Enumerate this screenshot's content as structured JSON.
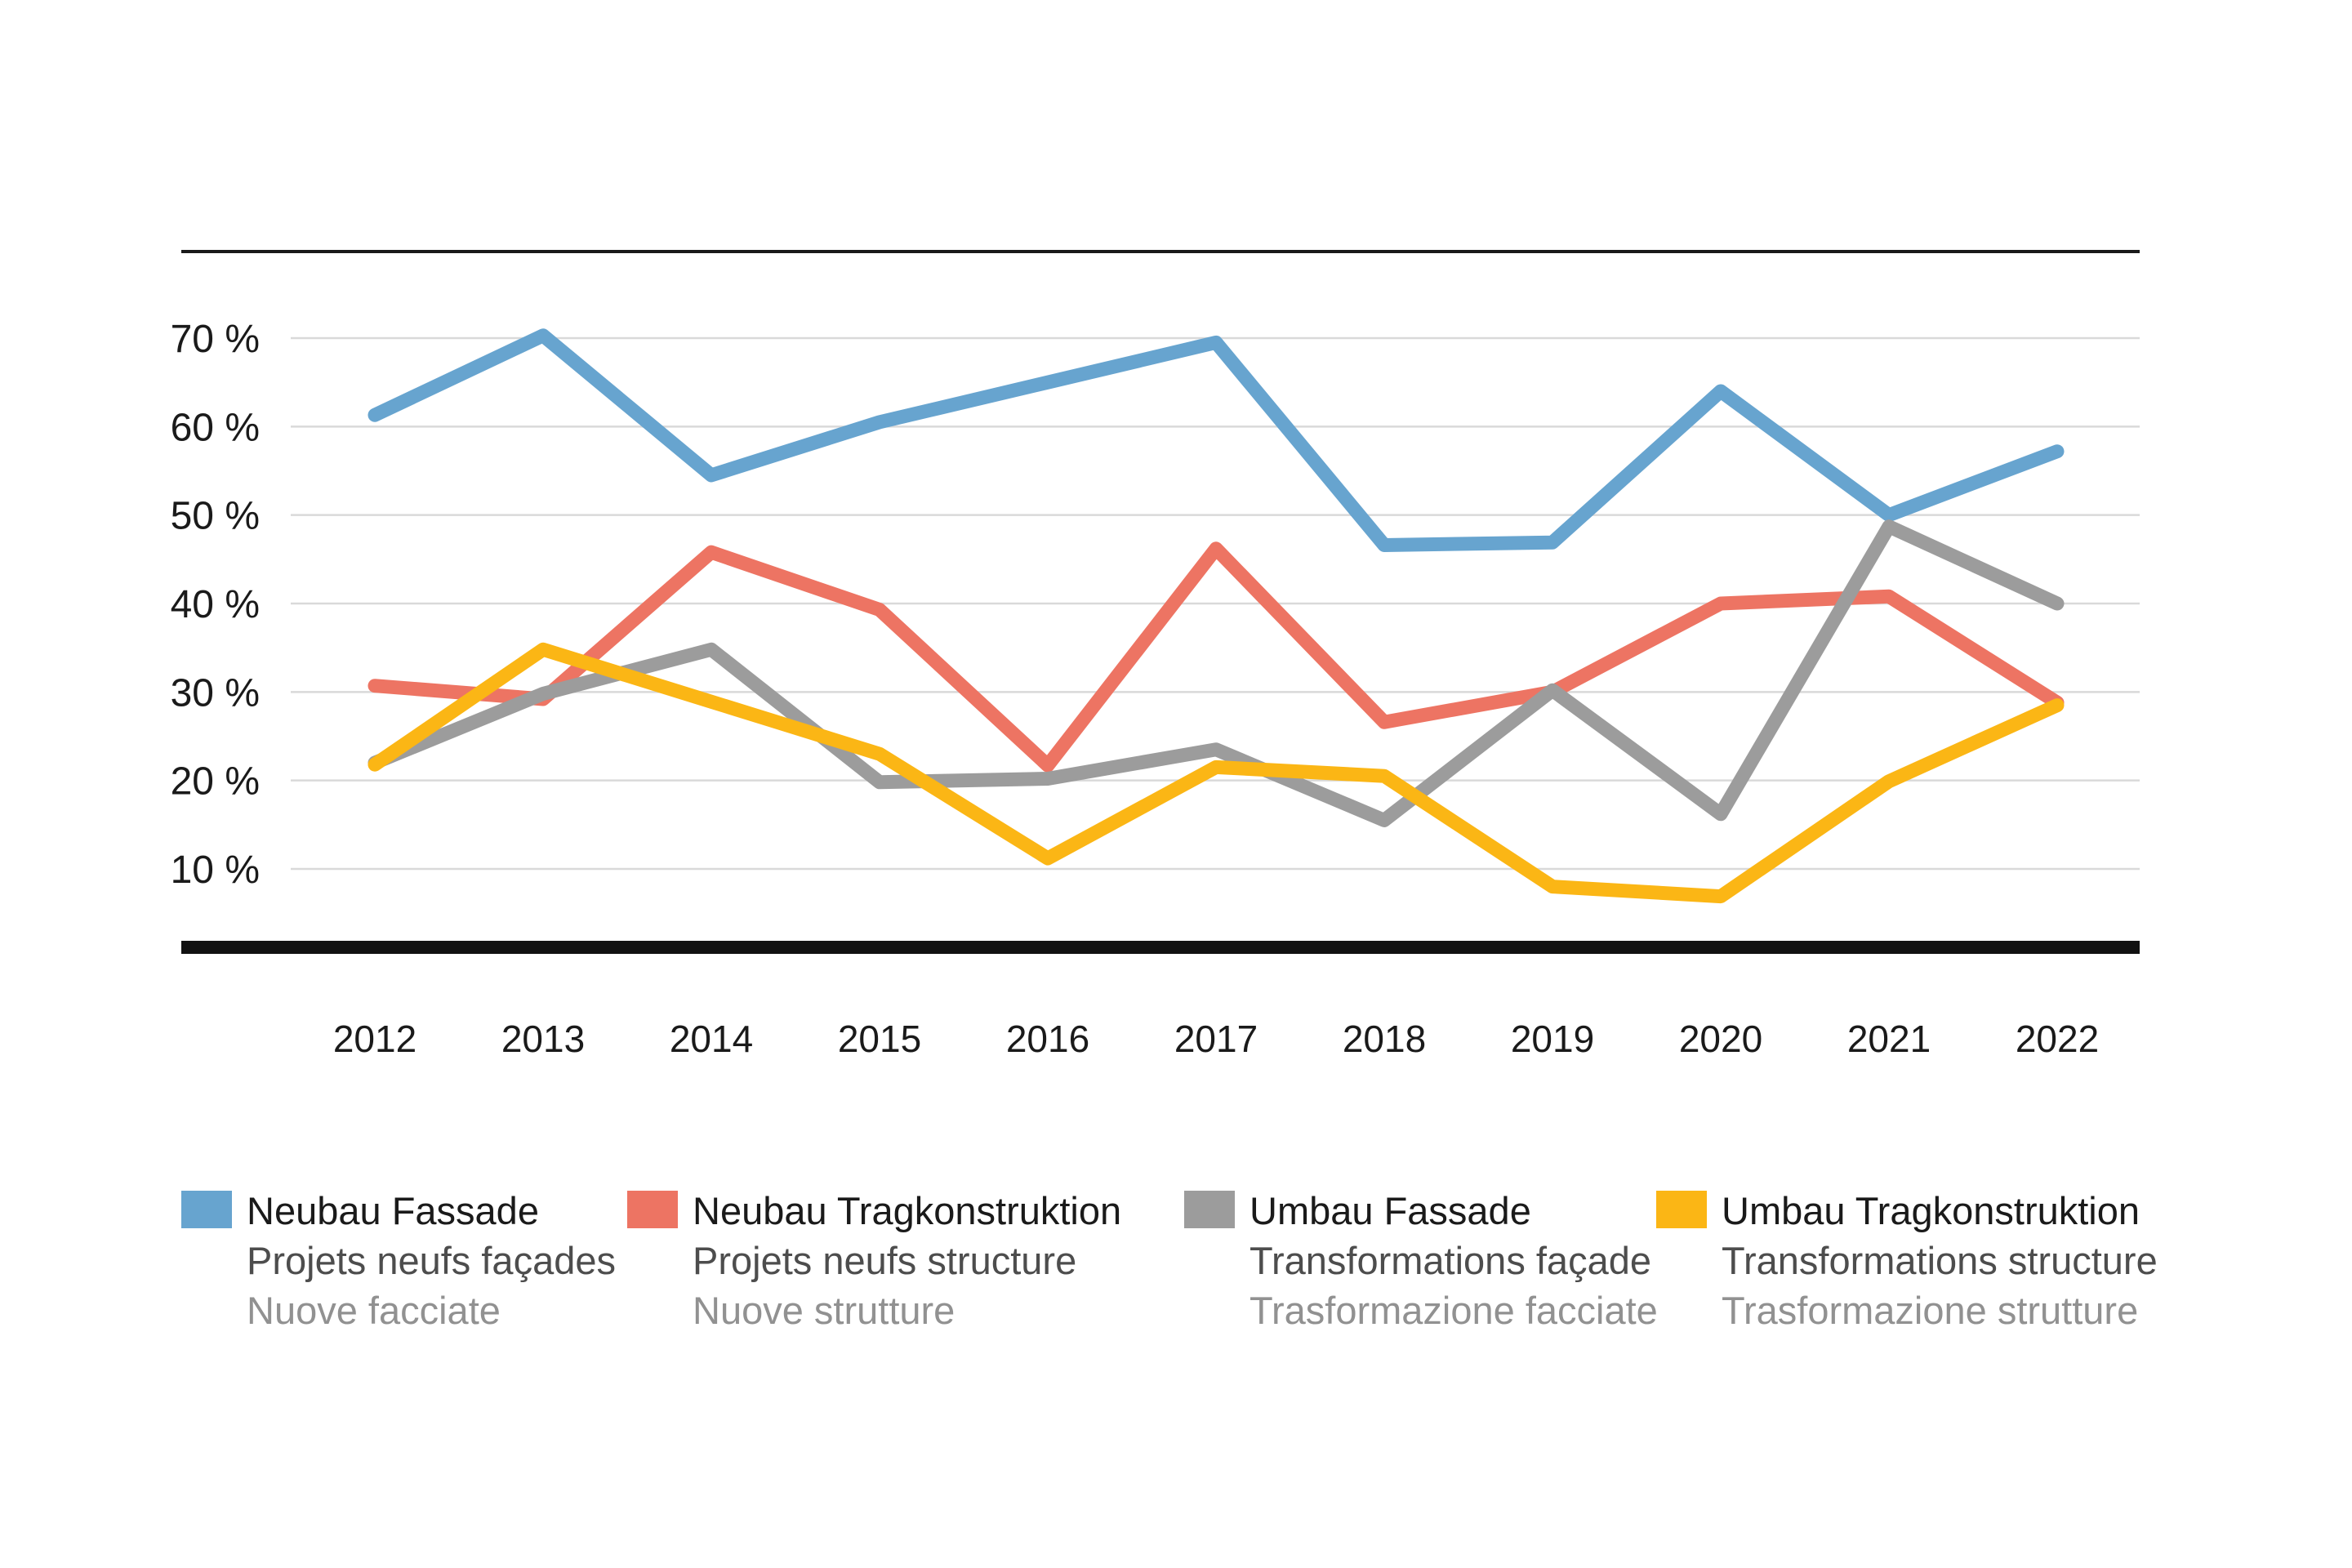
{
  "chart_data": {
    "type": "line",
    "x": [
      2012,
      2013,
      2014,
      2015,
      2016,
      2017,
      2018,
      2019,
      2020,
      2021,
      2022
    ],
    "y_tick_values": [
      70,
      60,
      50,
      40,
      30,
      20,
      10
    ],
    "y_tick_labels": [
      "70 %",
      "60 %",
      "50 %",
      "40 %",
      "30 %",
      "20 %",
      "10 %"
    ],
    "ylim": [
      0,
      79
    ],
    "grid": true,
    "legend_position": "bottom",
    "series": [
      {
        "id": "neubau-fassade",
        "label_de": "Neubau Fassade",
        "label_fr": "Projets neufs façades",
        "label_it": "Nuove facciate",
        "color": "#67a4cf",
        "values": [
          61.3,
          70.3,
          54.5,
          60.5,
          65.0,
          69.5,
          46.6,
          46.9,
          64.0,
          50.0,
          57.2
        ]
      },
      {
        "id": "neubau-tragkonstruktion",
        "label_de": "Neubau Tragkonstruktion",
        "label_fr": "Projets neufs structure",
        "label_it": "Nuove strutture",
        "color": "#ed7463",
        "values": [
          30.7,
          29.2,
          45.8,
          39.3,
          21.7,
          46.2,
          26.6,
          30.0,
          40.0,
          40.8,
          28.8
        ]
      },
      {
        "id": "umbau-fassade",
        "label_de": "Umbau Fassade",
        "label_fr": "Transformations façade",
        "label_it": "Trasformazione facciate",
        "color": "#9c9c9c",
        "values": [
          22.0,
          29.8,
          34.8,
          19.8,
          20.2,
          23.5,
          15.5,
          30.2,
          16.2,
          48.7,
          40.0
        ]
      },
      {
        "id": "umbau-tragkonstruktion",
        "label_de": "Umbau Tragkonstruktion",
        "label_fr": "Transformations structure",
        "label_it": "Trasformazione strutture",
        "color": "#fbb615",
        "values": [
          21.8,
          34.8,
          28.9,
          23.0,
          11.2,
          21.5,
          20.5,
          8.0,
          6.9,
          19.9,
          28.5
        ]
      }
    ],
    "axis_colors": {
      "top_rule": "#1a1a1a",
      "bottom_axis": "#111111",
      "gridline": "#d9d9d9",
      "tick_text": "#1a1a1a",
      "year_text": "#1a1a1a"
    }
  }
}
